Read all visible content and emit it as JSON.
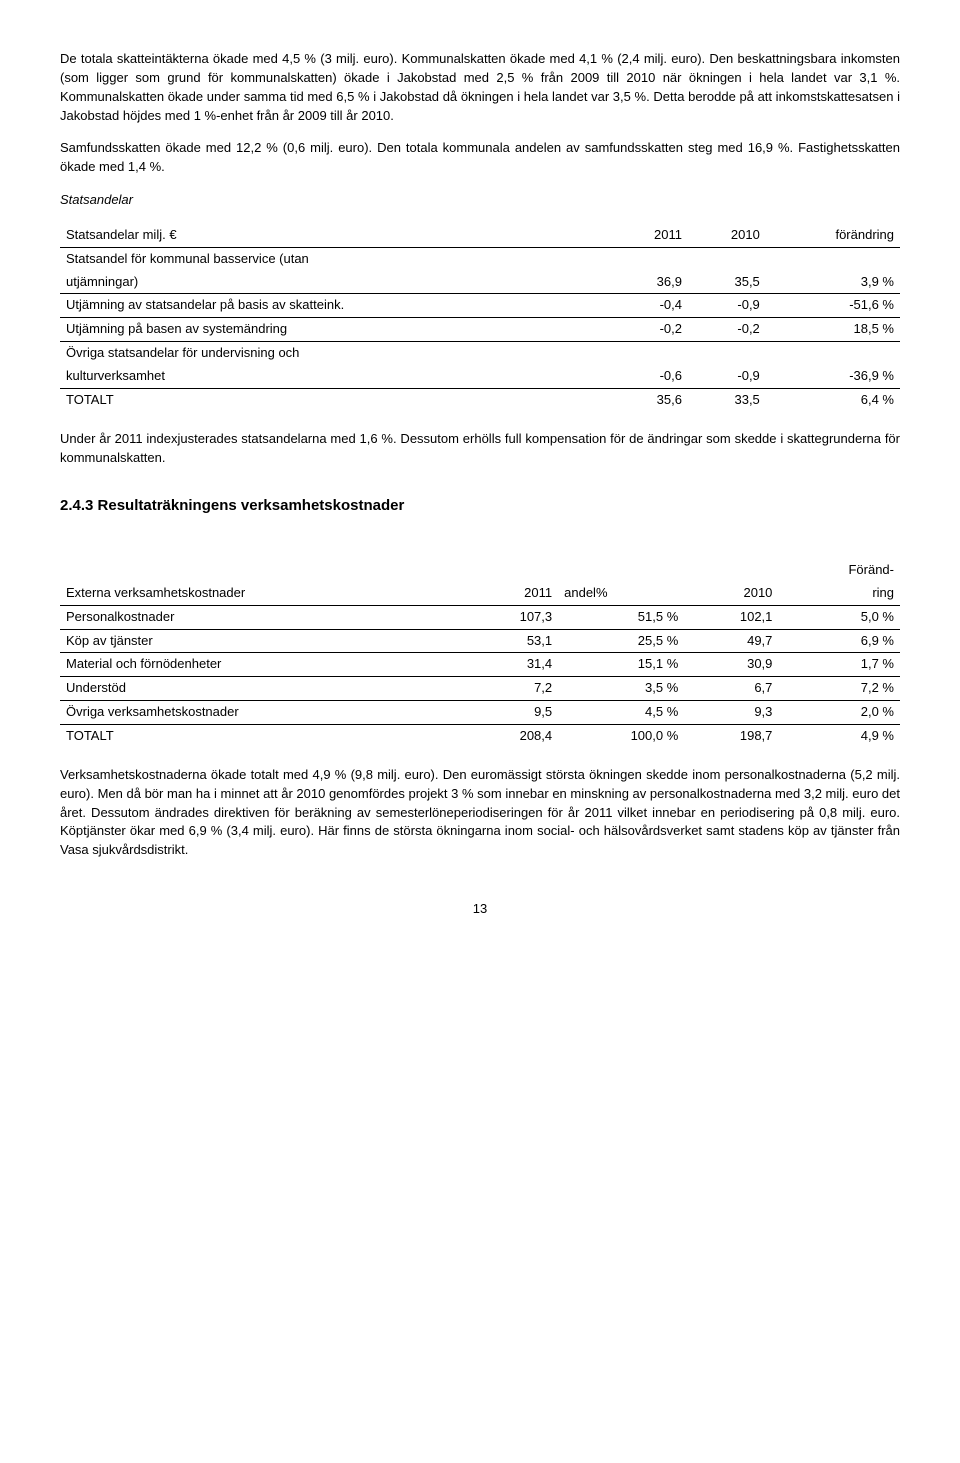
{
  "para1": "De totala skatteintäkterna ökade med 4,5 % (3 milj. euro). Kommunalskatten ökade med 4,1 % (2,4 milj. euro). Den beskattningsbara inkomsten (som ligger som grund för kommunalskatten) ökade i Jakobstad med 2,5 % från 2009 till 2010 när ökningen i hela landet var 3,1 %. Kommunalskatten ökade under samma tid med 6,5 % i Jakobstad då ökningen i hela landet var 3,5 %. Detta berodde på att inkomstskattesatsen i Jakobstad höjdes med 1 %-enhet från år 2009 till år 2010.",
  "para2": "Samfundsskatten ökade med 12,2 % (0,6 milj. euro). Den totala kommunala andelen av samfundsskatten steg med 16,9 %. Fastighetsskatten ökade med 1,4 %.",
  "section1": "Statsandelar",
  "table1": {
    "headers": [
      "Statsandelar milj. €",
      "2011",
      "2010",
      "förändring"
    ],
    "rows": [
      {
        "label_a": "Statsandel för kommunal basservice (utan",
        "label_b": "utjämningar)",
        "c1": "36,9",
        "c2": "35,5",
        "c3": "3,9 %"
      },
      {
        "label": "Utjämning av statsandelar på basis av skatteink.",
        "c1": "-0,4",
        "c2": "-0,9",
        "c3": "-51,6 %"
      },
      {
        "label": "Utjämning på basen av systemändring",
        "c1": "-0,2",
        "c2": "-0,2",
        "c3": "18,5 %"
      },
      {
        "label_a": "Övriga statsandelar för undervisning och",
        "label_b": "kulturverksamhet",
        "c1": "-0,6",
        "c2": "-0,9",
        "c3": "-36,9 %"
      },
      {
        "label": "TOTALT",
        "c1": "35,6",
        "c2": "33,5",
        "c3": "6,4 %"
      }
    ]
  },
  "para3": "Under år 2011 indexjusterades statsandelarna med 1,6 %. Dessutom erhölls full kompensation för de ändringar som skedde i skattegrunderna för kommunalskatten.",
  "heading2": "2.4.3  Resultaträkningens verksamhetskostnader",
  "table2": {
    "headers": [
      "Externa verksamhetskostnader",
      "2011",
      "andel%",
      "2010",
      "Föränd-",
      "ring"
    ],
    "rows": [
      {
        "label": "Personalkostnader",
        "c1": "107,3",
        "c2": "51,5 %",
        "c3": "102,1",
        "c4": "5,0 %"
      },
      {
        "label": "Köp av tjänster",
        "c1": "53,1",
        "c2": "25,5 %",
        "c3": "49,7",
        "c4": "6,9 %"
      },
      {
        "label": "Material och förnödenheter",
        "c1": "31,4",
        "c2": "15,1 %",
        "c3": "30,9",
        "c4": "1,7 %"
      },
      {
        "label": "Understöd",
        "c1": "7,2",
        "c2": "3,5 %",
        "c3": "6,7",
        "c4": "7,2 %"
      },
      {
        "label": "Övriga verksamhetskostnader",
        "c1": "9,5",
        "c2": "4,5 %",
        "c3": "9,3",
        "c4": "2,0 %"
      },
      {
        "label": "TOTALT",
        "c1": "208,4",
        "c2": "100,0 %",
        "c3": "198,7",
        "c4": "4,9 %"
      }
    ]
  },
  "para4": "Verksamhetskostnaderna ökade totalt med 4,9 % (9,8 milj. euro). Den euromässigt största ökningen skedde inom personalkostnaderna (5,2 milj. euro). Men då bör man ha i minnet att år 2010 genomfördes projekt 3 % som innebar en minskning av personalkostnaderna med 3,2 milj. euro det året. Dessutom ändrades direktiven för beräkning av semesterlöneperiodiseringen för år 2011 vilket innebar en periodisering på 0,8 milj. euro. Köptjänster ökar med 6,9 % (3,4 milj. euro). Här finns de största ökningarna inom social- och hälsovårdsverket samt stadens köp av tjänster från Vasa sjukvårdsdistrikt.",
  "pagenum": "13"
}
